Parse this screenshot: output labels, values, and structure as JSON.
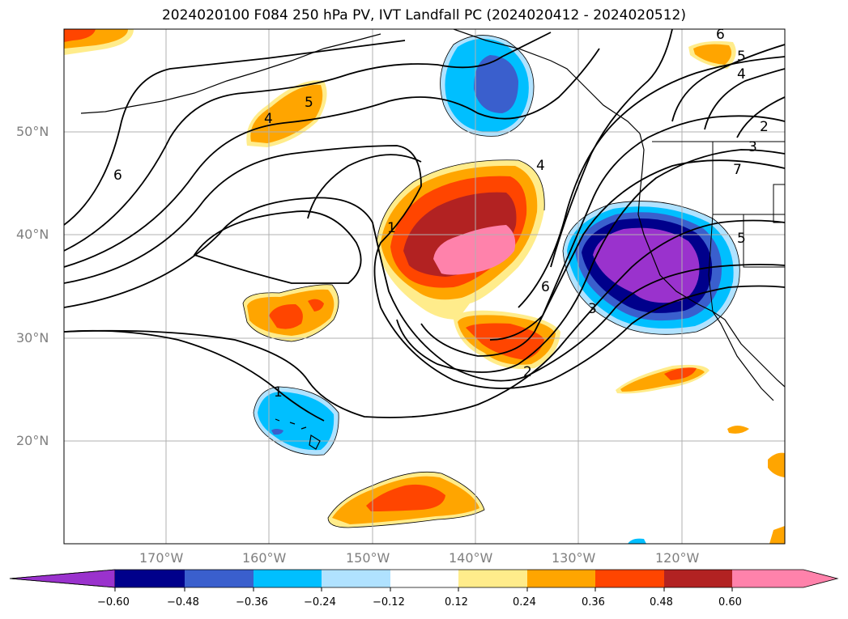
{
  "title": "2024020100 F084 250 hPa PV, IVT Landfall PC (2024020412 - 2024020512)",
  "axes": {
    "lat_labels": [
      "50°N",
      "40°N",
      "30°N",
      "20°N"
    ],
    "lon_labels": [
      "170°W",
      "160°W",
      "150°W",
      "140°W",
      "130°W",
      "120°W"
    ]
  },
  "colorbar": {
    "ticks": [
      "−0.60",
      "−0.48",
      "−0.36",
      "−0.24",
      "−0.12",
      "0.12",
      "0.24",
      "0.36",
      "0.48",
      "0.60"
    ],
    "colors": [
      "#9a32cd",
      "#00008b",
      "#3a5fcd",
      "#00bfff",
      "#b0e2ff",
      "#ffffff",
      "#ffec8b",
      "#ffa500",
      "#ff4500",
      "#b22222",
      "#ff82ab"
    ]
  },
  "contour_labels": [
    "6",
    "5",
    "4",
    "1",
    "4",
    "6",
    "3",
    "2",
    "1",
    "6",
    "5",
    "4",
    "3",
    "2",
    "5",
    "7"
  ]
}
